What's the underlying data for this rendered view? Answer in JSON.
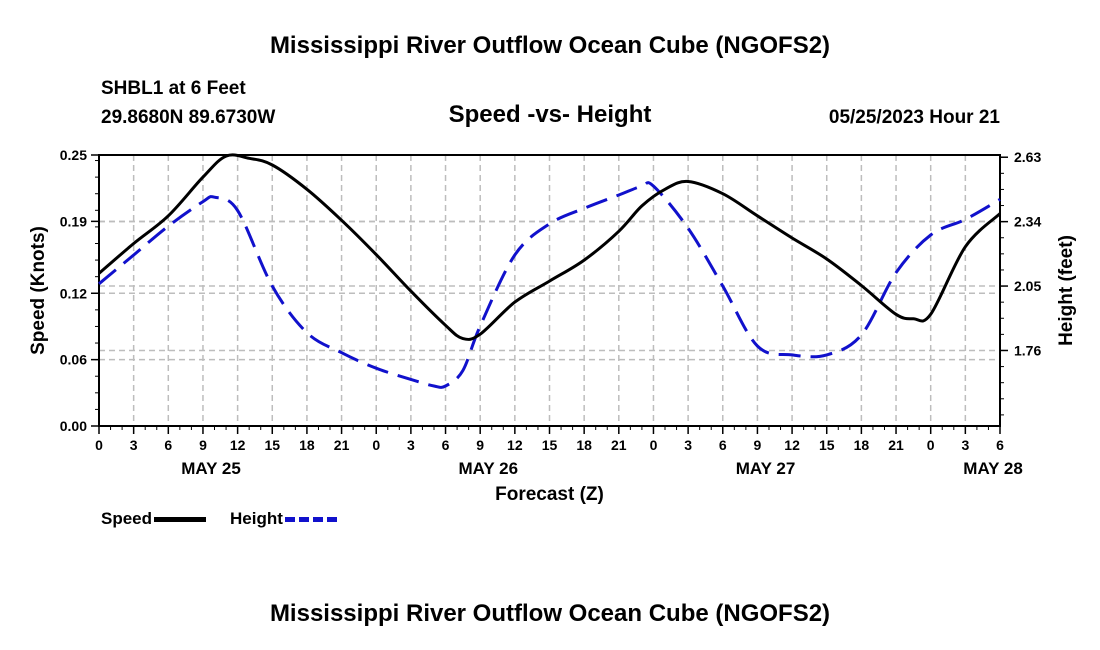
{
  "header": {
    "title": "Mississippi River Outflow Ocean Cube (NGOFS2)",
    "station": "SHBL1 at 6 Feet",
    "location": "29.8680N  89.6730W",
    "subtitle": "Speed -vs- Height",
    "datetime": "05/25/2023 Hour 21"
  },
  "footer": {
    "title": "Mississippi River Outflow Ocean Cube (NGOFS2)"
  },
  "legend": {
    "speed_label": "Speed",
    "height_label": "Height",
    "speed_color": "#000000",
    "height_color": "#1111cc"
  },
  "chart_data": {
    "type": "line",
    "title": "Speed -vs- Height",
    "xlabel": "Forecast (Z)",
    "ylabel": "Speed (Knots)",
    "y2label": "Height (feet)",
    "xlim": [
      0,
      78
    ],
    "ylim": [
      0,
      0.245
    ],
    "y2lim": [
      1.42,
      2.64
    ],
    "y_ticks": [
      "0.00",
      "0.06",
      "0.12",
      "0.19",
      "0.25"
    ],
    "y_tick_values": [
      0.0,
      0.06,
      0.12,
      0.185,
      0.245
    ],
    "y2_ticks": [
      "1.76",
      "2.05",
      "2.34",
      "2.63"
    ],
    "y2_tick_values": [
      1.76,
      2.05,
      2.34,
      2.63
    ],
    "x_tick_labels": [
      "0",
      "3",
      "6",
      "9",
      "12",
      "15",
      "18",
      "21",
      "0",
      "3",
      "6",
      "9",
      "12",
      "15",
      "18",
      "21",
      "0",
      "3",
      "6",
      "9",
      "12",
      "15",
      "18",
      "21",
      "0",
      "3",
      "6"
    ],
    "date_labels": [
      {
        "label": "MAY 25",
        "hour": 9.7
      },
      {
        "label": "MAY 26",
        "hour": 33.7
      },
      {
        "label": "MAY 27",
        "hour": 57.7
      },
      {
        "label": "MAY 28",
        "hour": 77.4
      }
    ],
    "series": [
      {
        "name": "Speed",
        "axis": "left",
        "color": "#000000",
        "style": "solid",
        "x": [
          0,
          3,
          6,
          9,
          11,
          13,
          15,
          18,
          21,
          24,
          27,
          30,
          31.5,
          33,
          36,
          39,
          42,
          45,
          47,
          49,
          51,
          54,
          57,
          60,
          63,
          66,
          69,
          70.5,
          72,
          75,
          78
        ],
        "values": [
          0.138,
          0.165,
          0.19,
          0.225,
          0.244,
          0.242,
          0.236,
          0.214,
          0.186,
          0.155,
          0.122,
          0.091,
          0.079,
          0.083,
          0.112,
          0.131,
          0.15,
          0.176,
          0.199,
          0.214,
          0.221,
          0.21,
          0.19,
          0.17,
          0.151,
          0.127,
          0.101,
          0.097,
          0.101,
          0.162,
          0.192
        ]
      },
      {
        "name": "Height",
        "axis": "right",
        "color": "#1111cc",
        "style": "dashed",
        "x": [
          0,
          3,
          6,
          9,
          10,
          12,
          15,
          18,
          21,
          24,
          27,
          29,
          30,
          31.5,
          33,
          36,
          39,
          42,
          45,
          47,
          48,
          51,
          54,
          57,
          60,
          63,
          66,
          69,
          72,
          75,
          78
        ],
        "values": [
          2.06,
          2.19,
          2.32,
          2.43,
          2.45,
          2.39,
          2.05,
          1.84,
          1.75,
          1.68,
          1.63,
          1.6,
          1.6,
          1.67,
          1.87,
          2.19,
          2.33,
          2.4,
          2.46,
          2.5,
          2.5,
          2.31,
          2.05,
          1.78,
          1.74,
          1.74,
          1.83,
          2.11,
          2.28,
          2.35,
          2.44
        ]
      }
    ]
  }
}
